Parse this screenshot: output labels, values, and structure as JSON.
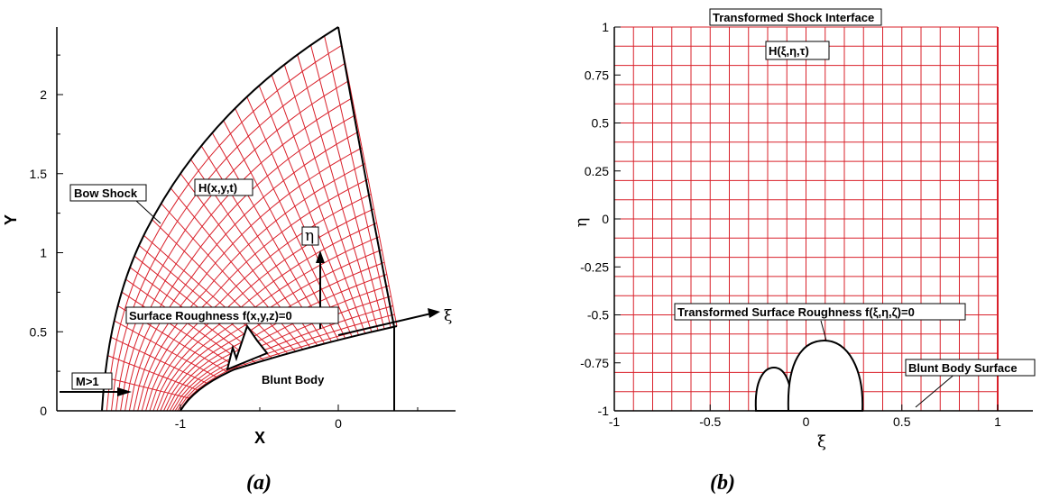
{
  "panel_a": {
    "caption": "(a)",
    "xlabel": "X",
    "ylabel": "Y",
    "x_ticks": [
      "-1",
      "0"
    ],
    "y_ticks": [
      "0",
      "0.5",
      "1",
      "1.5",
      "2"
    ],
    "labels": {
      "bow_shock": "Bow Shock",
      "grid_function": "H(x,y,t)",
      "eta": "η",
      "xi": "ξ",
      "roughness": "Surface Roughness f(x,y,z)=0",
      "mach": "M>1",
      "body": "Blunt Body"
    }
  },
  "panel_b": {
    "caption": "(b)",
    "xlabel": "ξ",
    "ylabel": "η",
    "title": "Transformed Shock Interface",
    "x_ticks": [
      "-1",
      "-0.5",
      "0",
      "0.5",
      "1"
    ],
    "y_ticks": [
      "1",
      "0.75",
      "0.5",
      "0.25",
      "0",
      "-0.25",
      "-0.5",
      "-0.75",
      "-1"
    ],
    "labels": {
      "grid_function": "H(ξ,η,τ)",
      "roughness": "Transformed Surface Roughness f(ξ,η,ζ)=0",
      "body_surface": "Blunt Body Surface"
    }
  },
  "colors": {
    "grid": "#d9202a",
    "outline": "#000000"
  }
}
